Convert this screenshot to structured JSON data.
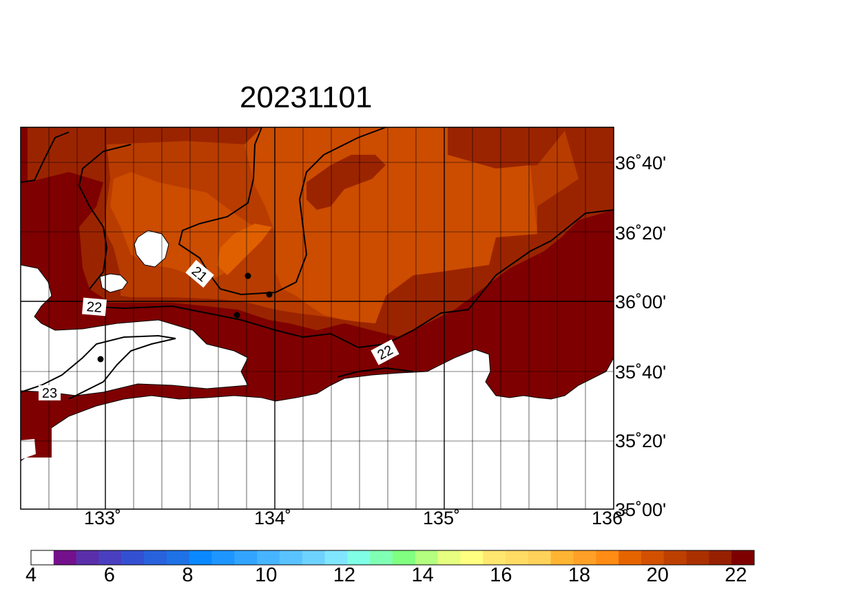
{
  "title": "20231101",
  "map": {
    "lat_labels": [
      "36˚40'",
      "36˚20'",
      "36˚00'",
      "35˚40'",
      "35˚20'",
      "35˚00'"
    ],
    "lon_labels": [
      "133˚",
      "134˚",
      "135˚",
      "136˚"
    ],
    "contour_labels": [
      "21",
      "22",
      "22",
      "23"
    ],
    "colors": {
      "land": "#ffffff",
      "temp_22_plus": "#7f0000",
      "temp_21_22": "#9b2400",
      "temp_20_21": "#b83c00",
      "temp_19_20": "#cc4c00",
      "temp_18_19": "#e06000"
    }
  },
  "colorbar": {
    "labels": [
      "4",
      "6",
      "8",
      "10",
      "12",
      "14",
      "16",
      "18",
      "20",
      "22"
    ],
    "colors": [
      "#ffffff",
      "#74108c",
      "#5a2eaa",
      "#4a3fbf",
      "#3450d2",
      "#2862dc",
      "#1e72e6",
      "#0a88ff",
      "#1e96ff",
      "#32a4ff",
      "#46b4ff",
      "#5ac3ff",
      "#6ed2ff",
      "#80e6ff",
      "#80ffe6",
      "#80ffb4",
      "#80ff80",
      "#b4ff80",
      "#e6ff80",
      "#ffff80",
      "#ffe66e",
      "#ffdc64",
      "#ffd25a",
      "#ffb432",
      "#ffa028",
      "#ff8c14",
      "#e66400",
      "#d25000",
      "#be4000",
      "#aa3000",
      "#962000",
      "#7f0000"
    ]
  }
}
